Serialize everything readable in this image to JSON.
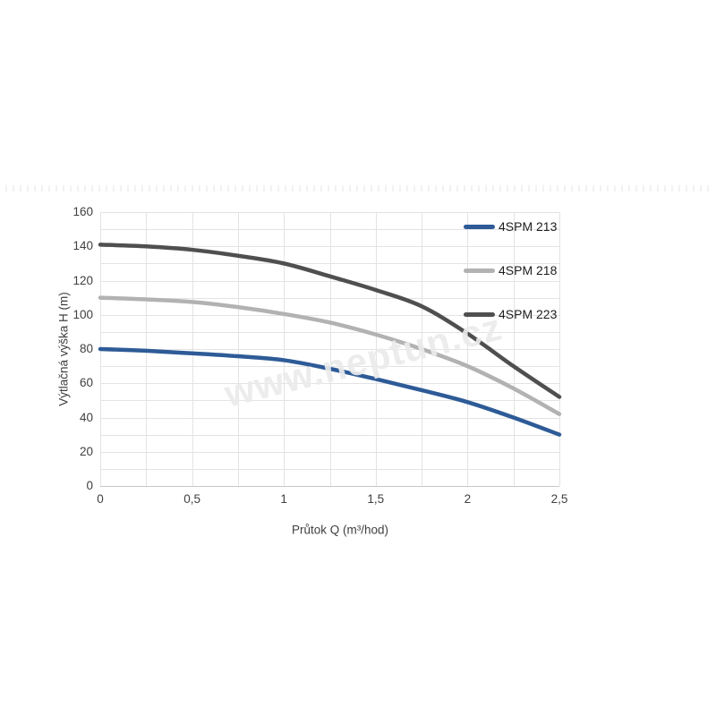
{
  "watermark": {
    "text": "www.neptun.cz"
  },
  "colors": {
    "grid": "#e3e3e3",
    "axis_line": "#c7c7c7",
    "tick_text": "#404040",
    "series_213": "#2E5B97",
    "series_218": "#B2B2B2",
    "series_223": "#4F4F4F"
  },
  "chart_data": {
    "type": "line",
    "title": "",
    "xlabel": "Průtok Q (m³/hod)",
    "ylabel": "Výtlačná výška H (m)",
    "xlim": [
      0,
      2.5
    ],
    "ylim": [
      0,
      160
    ],
    "grid": true,
    "x_grid_step": 0.25,
    "y_grid_step": 10,
    "legend_position": "top-right-inside",
    "x_ticks": [
      {
        "value": 0,
        "label": "0"
      },
      {
        "value": 0.5,
        "label": "0,5"
      },
      {
        "value": 1,
        "label": "1"
      },
      {
        "value": 1.5,
        "label": "1,5"
      },
      {
        "value": 2,
        "label": "2"
      },
      {
        "value": 2.5,
        "label": "2,5"
      }
    ],
    "y_ticks": [
      {
        "value": 0,
        "label": "0"
      },
      {
        "value": 20,
        "label": "20"
      },
      {
        "value": 40,
        "label": "40"
      },
      {
        "value": 60,
        "label": "60"
      },
      {
        "value": 80,
        "label": "80"
      },
      {
        "value": 100,
        "label": "100"
      },
      {
        "value": 120,
        "label": "120"
      },
      {
        "value": 140,
        "label": "140"
      },
      {
        "value": 160,
        "label": "160"
      }
    ],
    "x": [
      0,
      0.25,
      0.5,
      0.75,
      1,
      1.25,
      1.5,
      1.75,
      2,
      2.25,
      2.5
    ],
    "series": [
      {
        "name": "4SPM 213",
        "color": "#2E5B97",
        "values": [
          80,
          79,
          77.5,
          75.8,
          73.5,
          68.5,
          62.5,
          56,
          49,
          40,
          30
        ]
      },
      {
        "name": "4SPM 218",
        "color": "#B2B2B2",
        "values": [
          110,
          109,
          107.5,
          104.5,
          100.5,
          95.5,
          88.5,
          80,
          70,
          57,
          42
        ]
      },
      {
        "name": "4SPM 223",
        "color": "#4F4F4F",
        "values": [
          141,
          140,
          138,
          134.5,
          130,
          122.5,
          114.5,
          105,
          89,
          70,
          52
        ]
      }
    ]
  }
}
